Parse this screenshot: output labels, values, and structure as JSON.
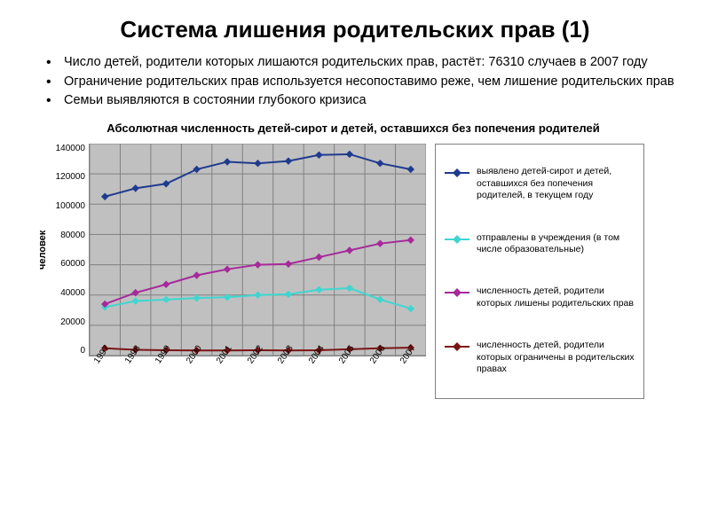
{
  "title": "Система лишения родительских прав (1)",
  "bullets": [
    "Число детей, родители которых лишаются родительских прав, растёт: 76310 случаев в 2007 году",
    "Ограничение родительских прав используется несопоставимо реже, чем лишение родительских прав",
    "Семьи выявляются в состоянии глубокого кризиса"
  ],
  "chart": {
    "type": "line",
    "title": "Абсолютная численность детей-сирот и детей, оставшихся без попечения родителей",
    "ylabel": "человек",
    "background_color": "#c0c0c0",
    "grid_color": "#808080",
    "ylim": [
      0,
      140000
    ],
    "ytick_step": 20000,
    "yticks": [
      "140000",
      "120000",
      "100000",
      "80000",
      "60000",
      "40000",
      "20000",
      "0"
    ],
    "xcategories": [
      "1997",
      "1998",
      "1999",
      "2000",
      "2001",
      "2002",
      "2003",
      "2004",
      "2005",
      "2006",
      "2007"
    ],
    "series": [
      {
        "label": "выявлено детей-сирот и детей, оставшихся без попечения родителей, в текущем году",
        "color": "#1f3b8f",
        "marker": "diamond",
        "values": [
          105000,
          110500,
          113500,
          123000,
          128000,
          127000,
          128500,
          132500,
          133000,
          127000,
          123000
        ]
      },
      {
        "label": "отправлены в учреждения (в том числе образовательные)",
        "color": "#3fd6d0",
        "marker": "diamond",
        "values": [
          32000,
          36000,
          37000,
          38000,
          38500,
          40000,
          40500,
          43500,
          44500,
          37000,
          31000
        ]
      },
      {
        "label": "численность детей, родители которых лишены родительских прав",
        "color": "#a62a9a",
        "marker": "diamond",
        "values": [
          34000,
          41500,
          47000,
          53000,
          57000,
          60000,
          60500,
          65000,
          69500,
          74000,
          76310
        ]
      },
      {
        "label": "численность детей, родители которых ограничены в родительских правах",
        "color": "#7a1414",
        "marker": "diamond",
        "values": [
          4800,
          3800,
          3500,
          3400,
          3400,
          3500,
          3400,
          3500,
          4200,
          4800,
          5200
        ]
      }
    ],
    "title_fontsize": 13,
    "label_fontsize": 11,
    "tick_fontsize": 10,
    "legend_fontsize": 10.5,
    "line_width": 2,
    "marker_size": 6
  }
}
